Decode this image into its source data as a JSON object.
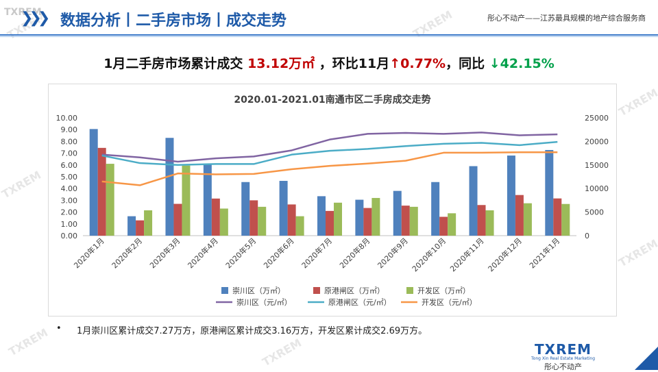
{
  "header": {
    "logo": "TXREM",
    "chevrons": "❯❯❯",
    "title": "数据分析丨二手房市场丨成交走势",
    "right_text": "彤心不动产——江苏最具规模的地产综合服务商"
  },
  "headline": {
    "prefix": "1月二手房市场累计成交",
    "volume": "13.12万㎡",
    "mid": "，环比11月",
    "mom_arrow": "↑",
    "mom_value": "0.77%",
    "yoy_label": "，同比",
    "yoy_arrow": "↓",
    "yoy_value": "42.15%"
  },
  "bullet": {
    "symbol": "•",
    "text": "1月崇川区累计成交7.27万方，原港闸区累计成交3.16万方，开发区累计成交2.69万方。"
  },
  "footer": {
    "logo": "TXREM",
    "tagline": "Tong Xin Real Estate Marketing",
    "cn": "彤心不动产"
  },
  "watermark": {
    "text": "TXREM"
  },
  "chart_data": {
    "type": "bar",
    "title": "2020.01-2021.01南通市区二手房成交走势",
    "categories": [
      "2020年1月",
      "2020年2月",
      "2020年3月",
      "2020年4月",
      "2020年5月",
      "2020年6月",
      "2020年7月",
      "2020年8月",
      "2020年9月",
      "2020年10月",
      "2020年11月",
      "2020年12月",
      "2021年1月"
    ],
    "y_left": {
      "min": 0,
      "max": 10,
      "step": 1,
      "decimals": 2
    },
    "y_right": {
      "min": 0,
      "max": 25000,
      "step": 5000
    },
    "bar_series": [
      {
        "name": "崇川区（万㎡）",
        "color": "#4f81bd",
        "values": [
          9.05,
          1.65,
          8.3,
          6.05,
          4.55,
          4.65,
          3.35,
          3.05,
          3.8,
          4.55,
          5.9,
          6.8,
          7.27
        ]
      },
      {
        "name": "原港闸区（万㎡）",
        "color": "#c0504d",
        "values": [
          7.45,
          1.3,
          2.7,
          3.15,
          3.0,
          2.65,
          2.1,
          2.35,
          2.55,
          1.6,
          2.6,
          3.45,
          3.16
        ]
      },
      {
        "name": "开发区（万㎡）",
        "color": "#9bbb59",
        "values": [
          6.1,
          2.15,
          5.95,
          2.3,
          2.45,
          1.65,
          2.8,
          3.2,
          2.45,
          1.9,
          2.15,
          2.75,
          2.69
        ]
      }
    ],
    "line_series": [
      {
        "name": "崇川区（元/㎡）",
        "color": "#8064a2",
        "values": [
          17200,
          16600,
          15700,
          16400,
          16800,
          18100,
          20400,
          21600,
          21800,
          21600,
          21900,
          21300,
          21500
        ]
      },
      {
        "name": "原港闸区（元/㎡）",
        "color": "#4bacc6",
        "values": [
          17000,
          15400,
          15000,
          15200,
          15200,
          17200,
          18000,
          18400,
          19000,
          19500,
          19700,
          19200,
          19900
        ]
      },
      {
        "name": "开发区（元/㎡）",
        "color": "#f79646",
        "values": [
          11500,
          10700,
          13200,
          13000,
          13100,
          14100,
          14800,
          15300,
          15900,
          17600,
          17600,
          17700,
          17700
        ]
      }
    ],
    "legend_position": "bottom",
    "grid": false
  }
}
